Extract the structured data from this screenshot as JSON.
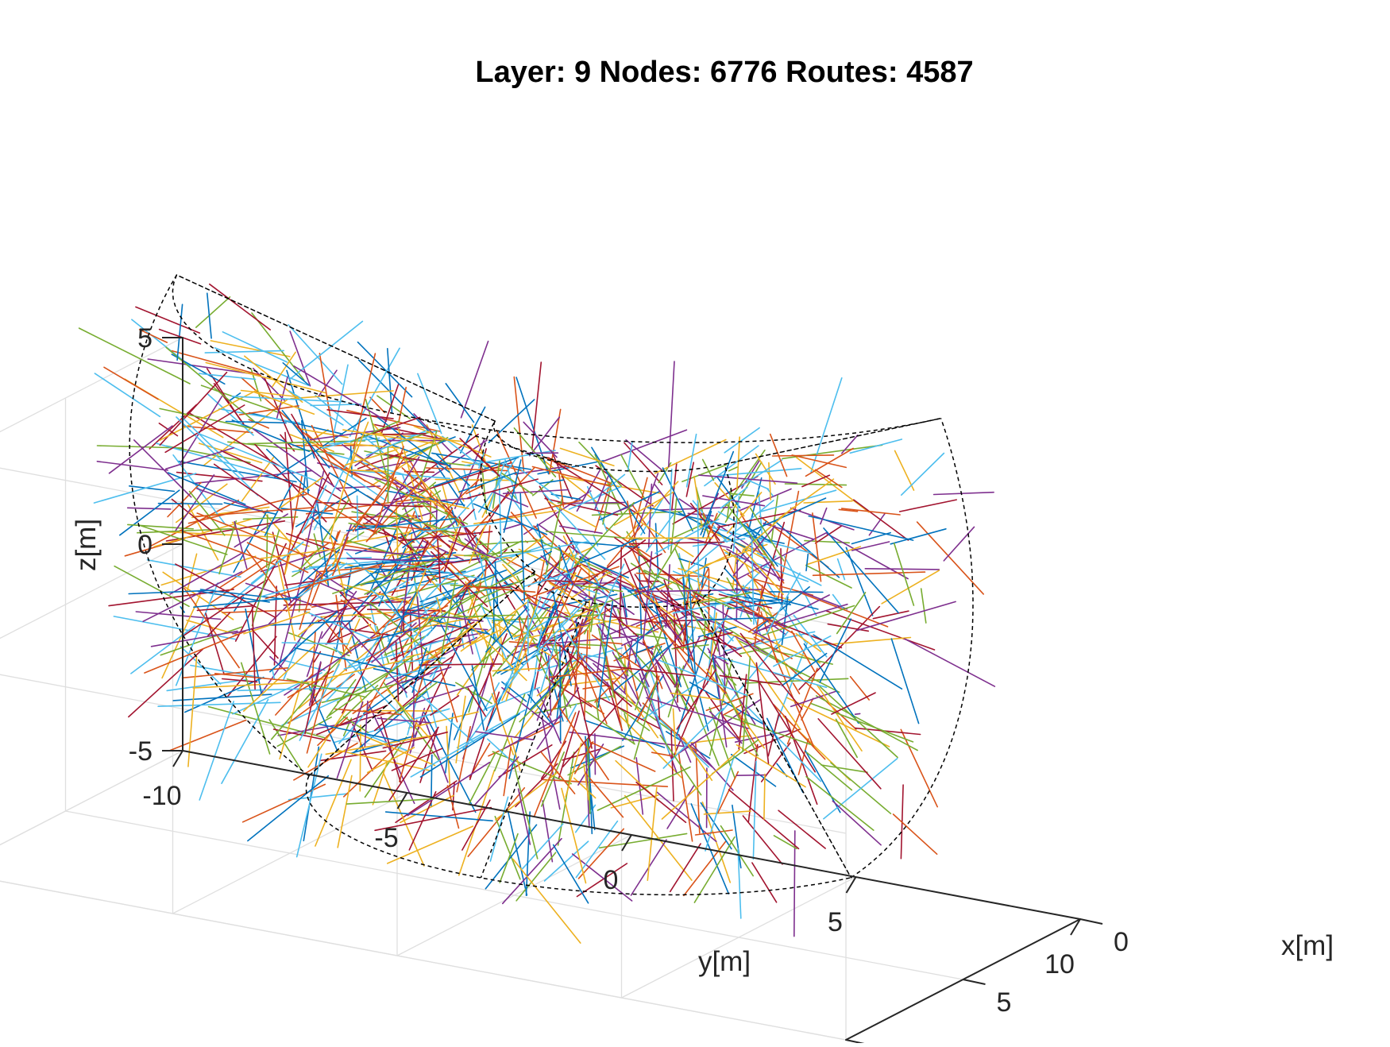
{
  "chart_data": {
    "type": "line",
    "projection": "3d",
    "title": "Layer: 9 Nodes: 6776 Routes: 4587",
    "xlabel": "x[m]",
    "ylabel": "y[m]",
    "zlabel": "z[m]",
    "xlim": [
      0,
      10
    ],
    "ylim": [
      -10,
      10
    ],
    "zlim": [
      -5,
      5
    ],
    "xticks": [
      0,
      5,
      10
    ],
    "yticks": [
      -10,
      -5,
      0,
      5,
      10
    ],
    "zticks": [
      -5,
      0,
      5
    ],
    "xtick_labels": [
      "0",
      "5",
      "10"
    ],
    "ytick_labels": [
      "-10",
      "-5",
      "0",
      "5",
      "10"
    ],
    "ztick_labels": [
      "-5",
      "0",
      "5"
    ],
    "grid": true,
    "legend": "none",
    "origin": [
      0,
      0,
      3.5
    ],
    "routes": {
      "shown_count": 4587,
      "segment_length_m": [
        1.0,
        2.6
      ]
    },
    "boundary": {
      "style": "dashed",
      "color": "#000000",
      "description": "annular sector volume bounding the routes",
      "inner_radius_m": 3.0,
      "outer_radius_m": 10.0,
      "elevation_range_deg": [
        -50,
        25
      ],
      "azimuth_range_deg": [
        -70,
        70
      ]
    },
    "series_colors": [
      "#0072BD",
      "#D95319",
      "#EDB120",
      "#7E2F8E",
      "#77AC30",
      "#4DBEEE",
      "#A2142F"
    ]
  }
}
